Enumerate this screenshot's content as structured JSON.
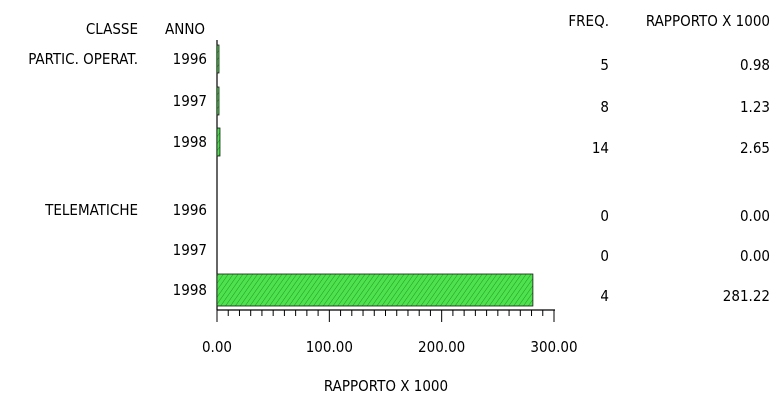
{
  "chart_data": {
    "type": "bar",
    "orientation": "horizontal",
    "column_headers": {
      "classe": "CLASSE",
      "anno": "ANNO",
      "freq": "FREQ.",
      "rapporto": "RAPPORTO X 1000"
    },
    "xlabel": "RAPPORTO X 1000",
    "xlim": [
      0,
      300
    ],
    "x_ticks": [
      "0.00",
      "100.00",
      "200.00",
      "300.00"
    ],
    "groups": [
      {
        "classe": "PARTIC. OPERAT.",
        "rows": [
          {
            "anno": "1996",
            "freq": "5",
            "rapporto_label": "0.98",
            "value": 0.98
          },
          {
            "anno": "1997",
            "freq": "8",
            "rapporto_label": "1.23",
            "value": 1.23
          },
          {
            "anno": "1998",
            "freq": "14",
            "rapporto_label": "2.65",
            "value": 2.65
          }
        ]
      },
      {
        "classe": "TELEMATICHE",
        "rows": [
          {
            "anno": "1996",
            "freq": "0",
            "rapporto_label": "0.00",
            "value": 0
          },
          {
            "anno": "1997",
            "freq": "0",
            "rapporto_label": "0.00",
            "value": 0
          },
          {
            "anno": "1998",
            "freq": "4",
            "rapporto_label": "281.22",
            "value": 281.22
          }
        ]
      }
    ],
    "bar_color": "#4ee24e"
  }
}
